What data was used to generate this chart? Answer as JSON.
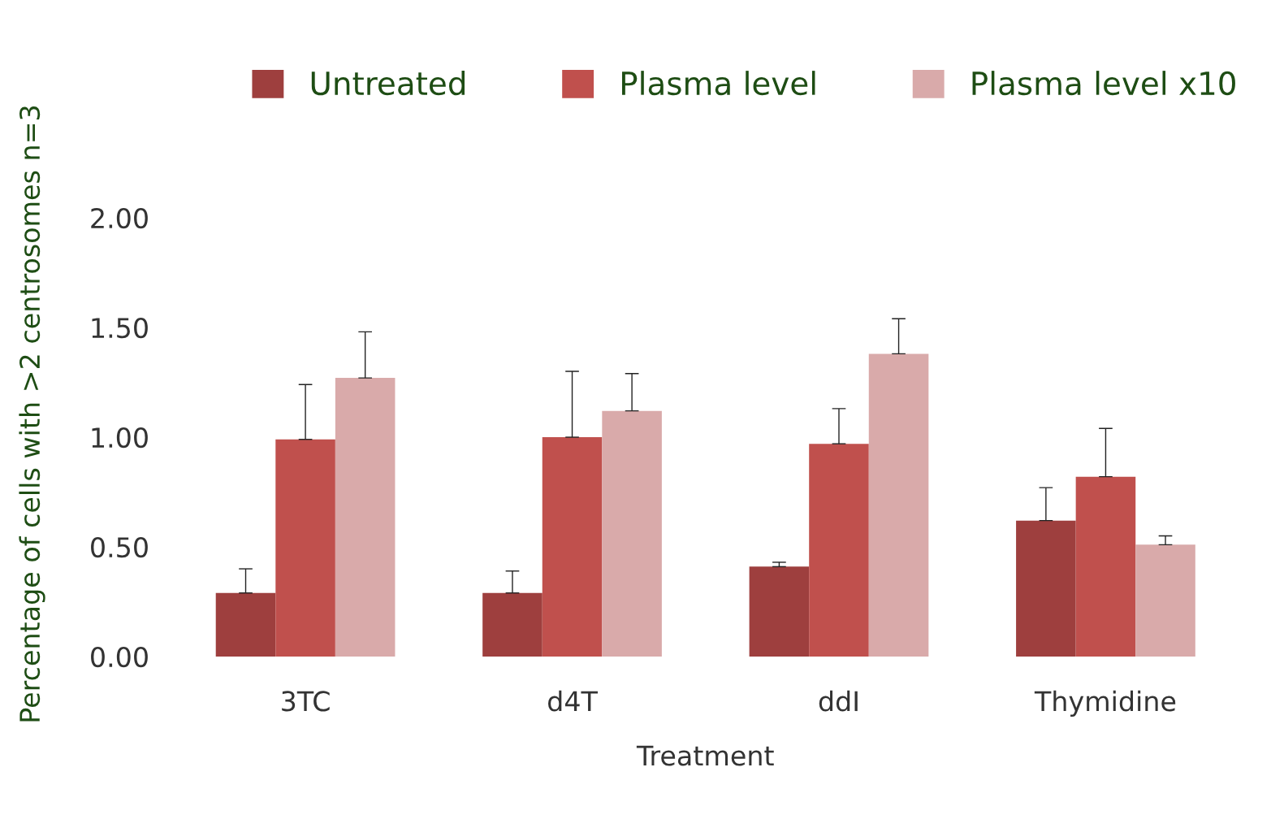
{
  "chart_data": {
    "type": "bar",
    "xlabel": "Treatment",
    "ylabel": "Percentage of cells with >2 centrosomes n=3",
    "categories": [
      "3TC",
      "d4T",
      "ddI",
      "Thymidine"
    ],
    "series": [
      {
        "name": "Untreated",
        "color": "#9e3f3e",
        "values": [
          0.29,
          0.29,
          0.41,
          0.62
        ],
        "errors": [
          [
            0.29,
            0.4
          ],
          [
            0.29,
            0.39
          ],
          [
            0.41,
            0.43
          ],
          [
            0.62,
            0.77
          ]
        ]
      },
      {
        "name": "Plasma level",
        "color": "#c0504d",
        "values": [
          0.99,
          1.0,
          0.97,
          0.82
        ],
        "errors": [
          [
            0.99,
            1.24
          ],
          [
            1.0,
            1.3
          ],
          [
            0.97,
            1.13
          ],
          [
            0.82,
            1.04
          ]
        ]
      },
      {
        "name": "Plasma level x10",
        "color": "#d9aaaa",
        "values": [
          1.27,
          1.12,
          1.38,
          0.51
        ],
        "errors": [
          [
            1.27,
            1.48
          ],
          [
            1.12,
            1.29
          ],
          [
            1.38,
            1.54
          ],
          [
            0.51,
            0.55
          ]
        ]
      }
    ],
    "ylim": [
      0,
      2.0
    ],
    "yticks": [
      {
        "value": 0,
        "label": "0.00"
      },
      {
        "value": 0.5,
        "label": "0.50"
      },
      {
        "value": 1.0,
        "label": "1.00"
      },
      {
        "value": 1.5,
        "label": "1.50"
      },
      {
        "value": 2.0,
        "label": "2.00"
      }
    ],
    "legend": "top",
    "grid": false
  }
}
